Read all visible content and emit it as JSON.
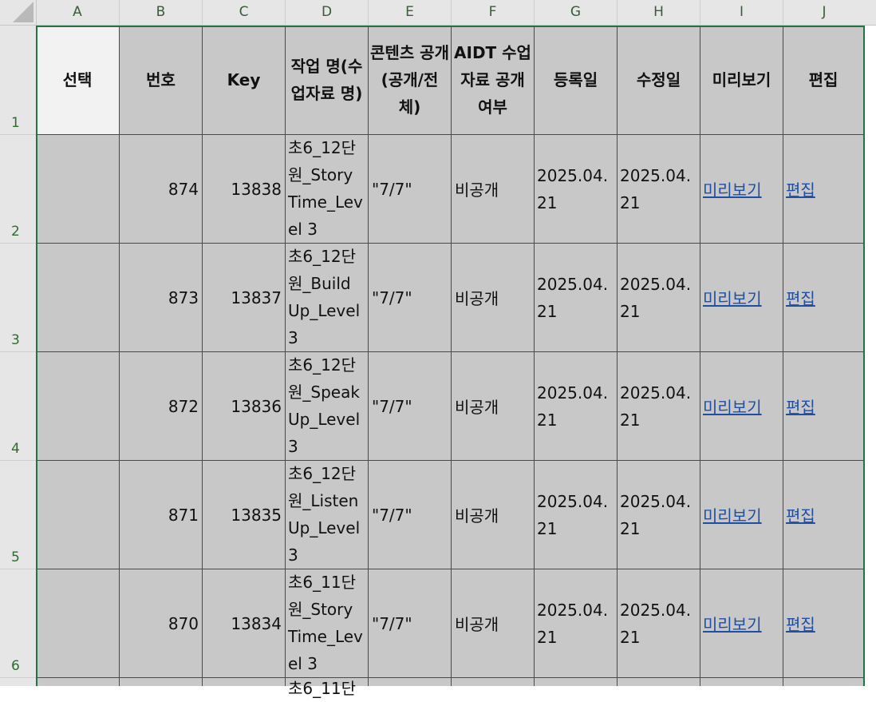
{
  "column_letters": [
    "A",
    "B",
    "C",
    "D",
    "E",
    "F",
    "G",
    "H",
    "I",
    "J"
  ],
  "row_numbers": [
    "1",
    "2",
    "3",
    "4",
    "5",
    "6"
  ],
  "headers": {
    "select": "선택",
    "number": "번호",
    "key": "Key",
    "task_name": "작업 명(수업자료 명)",
    "content_open": "콘텐츠 공개(공개/전체)",
    "aidt_open": "AIDT 수업자료 공개 여부",
    "registered": "등록일",
    "modified": "수정일",
    "preview": "미리보기",
    "edit": "편집"
  },
  "rows": [
    {
      "number": "874",
      "key": "13838",
      "task_name": "초6_12단원_Story Time_Level 3",
      "content_open": "\"7/7\"",
      "aidt_open": "비공개",
      "registered": "2025.04.21",
      "modified": "2025.04.21",
      "preview": "미리보기",
      "edit": "편집"
    },
    {
      "number": "873",
      "key": "13837",
      "task_name": "초6_12단원_Build Up_Level 3",
      "content_open": "\"7/7\"",
      "aidt_open": "비공개",
      "registered": "2025.04.21",
      "modified": "2025.04.21",
      "preview": "미리보기",
      "edit": "편집"
    },
    {
      "number": "872",
      "key": "13836",
      "task_name": "초6_12단원_Speak Up_Level 3",
      "content_open": "\"7/7\"",
      "aidt_open": "비공개",
      "registered": "2025.04.21",
      "modified": "2025.04.21",
      "preview": "미리보기",
      "edit": "편집"
    },
    {
      "number": "871",
      "key": "13835",
      "task_name": "초6_12단원_Listen Up_Level 3",
      "content_open": "\"7/7\"",
      "aidt_open": "비공개",
      "registered": "2025.04.21",
      "modified": "2025.04.21",
      "preview": "미리보기",
      "edit": "편집"
    },
    {
      "number": "870",
      "key": "13834",
      "task_name": "초6_11단원_Story Time_Level 3",
      "content_open": "\"7/7\"",
      "aidt_open": "비공개",
      "registered": "2025.04.21",
      "modified": "2025.04.21",
      "preview": "미리보기",
      "edit": "편집"
    },
    {
      "task_name": "초6_11단"
    }
  ],
  "colors": {
    "selection_border": "#217346",
    "link": "#1f4ea3",
    "cell_fill": "#c8c8c8"
  }
}
